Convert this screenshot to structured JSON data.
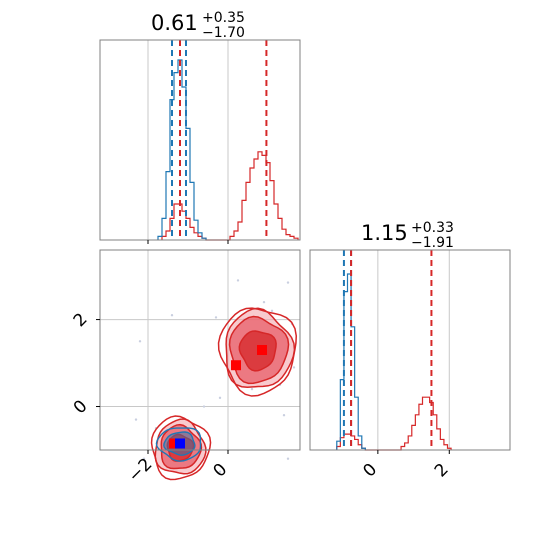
{
  "colors": {
    "red": "#d62728",
    "red_light": "#f4a6ad",
    "red_mid": "#e85d68",
    "blue": "#1f77b4",
    "marker_blue": "#0000ff",
    "marker_red": "#ff0000",
    "grid": "#c8c8c8",
    "frame": "#808080",
    "scatter": "#c9cfe0"
  },
  "chart_data": [
    {
      "panel": "marginal-param-1",
      "type": "histogram",
      "title": {
        "main": "0.61",
        "sup": "+0.35",
        "sub": "−1.70"
      },
      "xlim": [
        -3.2,
        1.8
      ],
      "grid_x": [
        -2,
        0
      ],
      "series": [
        {
          "name": "",
          "color": "red",
          "x": [
            -1.6,
            -1.5,
            -1.4,
            -1.3,
            -1.2,
            -1.1,
            -1.0,
            -0.9,
            -0.8,
            -0.7,
            -0.6,
            0.1,
            0.2,
            0.3,
            0.4,
            0.5,
            0.6,
            0.7,
            0.8,
            0.9,
            1.0,
            1.1,
            1.2,
            1.3,
            1.4,
            1.5,
            1.6,
            1.7
          ],
          "counts": [
            0.02,
            0.05,
            0.12,
            0.2,
            0.2,
            0.16,
            0.12,
            0.07,
            0.04,
            0.02,
            0.01,
            0.02,
            0.05,
            0.1,
            0.22,
            0.32,
            0.4,
            0.45,
            0.49,
            0.47,
            0.43,
            0.33,
            0.2,
            0.12,
            0.06,
            0.03,
            0.02,
            0.01
          ]
        },
        {
          "name": "",
          "color": "blue",
          "x": [
            -1.7,
            -1.6,
            -1.5,
            -1.4,
            -1.3,
            -1.2,
            -1.1,
            -1.0,
            -0.9,
            -0.8,
            -0.7,
            -0.6
          ],
          "counts": [
            0.02,
            0.12,
            0.38,
            0.78,
            0.93,
            1.0,
            0.85,
            0.62,
            0.32,
            0.11,
            0.04,
            0.01
          ]
        }
      ],
      "vlines": [
        {
          "x": -1.4,
          "color": "blue"
        },
        {
          "x": -1.05,
          "color": "blue"
        },
        {
          "x": -1.2,
          "color": "red"
        },
        {
          "x": 0.96,
          "color": "red"
        }
      ]
    },
    {
      "panel": "joint-2d",
      "type": "contour",
      "xlim": [
        -3.2,
        1.8
      ],
      "ylim": [
        -1.0,
        3.6
      ],
      "xticks": [
        -2,
        0
      ],
      "xtick_labels": [
        "−2",
        "0"
      ],
      "yticks": [
        0,
        2
      ],
      "ytick_labels": [
        "0",
        "2"
      ],
      "red_modes": [
        {
          "center": [
            -1.2,
            -0.95
          ],
          "rx": [
            0.62,
            0.5,
            0.32
          ],
          "ry": [
            0.62,
            0.5,
            0.3
          ]
        },
        {
          "center": [
            0.75,
            1.3
          ],
          "rx": [
            0.85,
            0.72,
            0.45
          ],
          "ry": [
            0.9,
            0.75,
            0.45
          ]
        }
      ],
      "blue_mode": {
        "center": [
          -1.2,
          -0.85
        ],
        "rx": [
          0.55,
          0.38
        ],
        "ry": [
          0.38,
          0.26
        ]
      },
      "markers": [
        {
          "x": -1.35,
          "y": -0.85,
          "color": "marker_red"
        },
        {
          "x": -1.2,
          "y": -0.85,
          "color": "marker_blue"
        },
        {
          "x": 0.2,
          "y": 0.95,
          "color": "marker_red"
        },
        {
          "x": 0.85,
          "y": 1.3,
          "color": "marker_red"
        }
      ],
      "scatter": [
        [
          0.25,
          2.9
        ],
        [
          1.5,
          2.85
        ],
        [
          0.9,
          2.4
        ],
        [
          1.1,
          2.2
        ],
        [
          -1.4,
          2.1
        ],
        [
          1.6,
          1.9
        ],
        [
          -0.3,
          2.05
        ],
        [
          0.4,
          2.0
        ],
        [
          -2.2,
          1.5
        ],
        [
          1.65,
          0.9
        ],
        [
          0.0,
          0.9
        ],
        [
          1.3,
          0.5
        ],
        [
          -0.2,
          0.2
        ],
        [
          -0.6,
          0.0
        ],
        [
          -1.8,
          -0.5
        ],
        [
          -0.5,
          -1.0
        ],
        [
          -2.1,
          -1.2
        ],
        [
          -0.8,
          -1.2
        ],
        [
          1.5,
          -1.2
        ],
        [
          -2.3,
          -0.3
        ],
        [
          1.4,
          -0.2
        ],
        [
          -0.2,
          -1.5
        ],
        [
          0.6,
          0.4
        ]
      ]
    },
    {
      "panel": "marginal-param-2",
      "type": "histogram",
      "title": {
        "main": "1.15",
        "sup": "+0.33",
        "sub": "−1.91"
      },
      "xlim": [
        -1.9,
        3.7
      ],
      "xticks": [
        0,
        2
      ],
      "xtick_labels": [
        "0",
        "2"
      ],
      "grid_x": [
        0,
        2
      ],
      "series": [
        {
          "name": "",
          "color": "red",
          "x": [
            -1.1,
            -1.0,
            -0.9,
            -0.8,
            -0.7,
            -0.6,
            -0.5,
            -0.4,
            0.7,
            0.8,
            0.9,
            1.0,
            1.1,
            1.2,
            1.3,
            1.4,
            1.5,
            1.6,
            1.7,
            1.8,
            1.9,
            2.0
          ],
          "counts": [
            0.02,
            0.07,
            0.09,
            0.09,
            0.08,
            0.06,
            0.03,
            0.01,
            0.02,
            0.04,
            0.08,
            0.14,
            0.2,
            0.26,
            0.3,
            0.3,
            0.27,
            0.2,
            0.12,
            0.06,
            0.03,
            0.01
          ]
        },
        {
          "name": "",
          "color": "blue",
          "x": [
            -1.1,
            -1.0,
            -0.9,
            -0.8,
            -0.7,
            -0.6,
            -0.5,
            -0.4
          ],
          "counts": [
            0.05,
            0.4,
            0.9,
            1.0,
            0.7,
            0.3,
            0.08,
            0.01
          ]
        }
      ],
      "vlines": [
        {
          "x": -0.95,
          "color": "blue"
        },
        {
          "x": -0.75,
          "color": "blue"
        },
        {
          "x": -0.75,
          "color": "red"
        },
        {
          "x": 1.5,
          "color": "red"
        }
      ]
    }
  ]
}
